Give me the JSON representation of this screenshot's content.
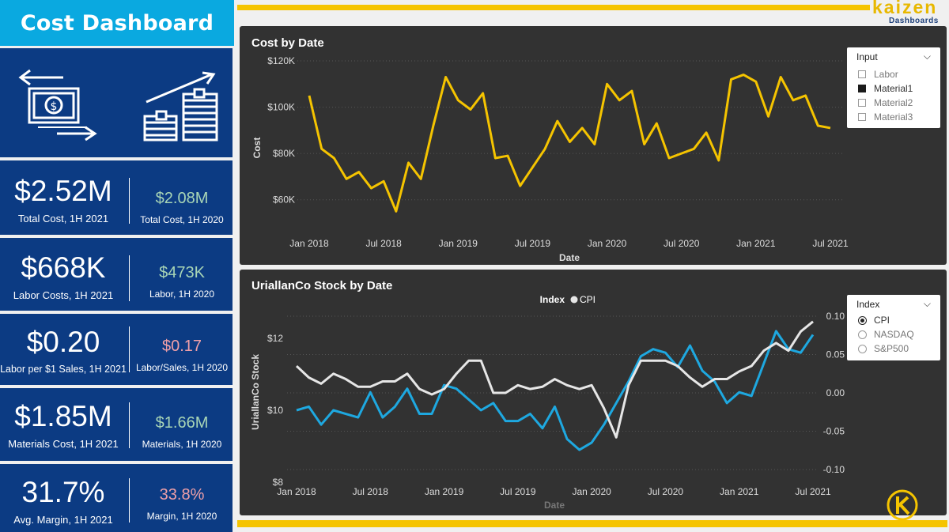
{
  "sidebar": {
    "title": "Cost Dashboard",
    "icons": [
      "money-exchange-icon",
      "money-growth-icon"
    ],
    "kpis": [
      {
        "value": "$2.52M",
        "label": "Total Cost, 1H 2021",
        "cmp_value": "$2.08M",
        "cmp_label": "Total Cost, 1H 2020",
        "cmp_color": "#a8d5b6"
      },
      {
        "value": "$668K",
        "label": "Labor Costs, 1H 2021",
        "cmp_value": "$473K",
        "cmp_label": "Labor, 1H 2020",
        "cmp_color": "#a8d5b6"
      },
      {
        "value": "$0.20",
        "label": "Labor per $1 Sales, 1H 2021",
        "cmp_value": "$0.17",
        "cmp_label": "Labor/Sales, 1H 2020",
        "cmp_color": "#f0a0a8"
      },
      {
        "value": "$1.85M",
        "label": "Materials Cost, 1H 2021",
        "cmp_value": "$1.66M",
        "cmp_label": "Materials, 1H 2020",
        "cmp_color": "#a8d5b6"
      },
      {
        "value": "31.7%",
        "label": "Avg. Margin, 1H 2021",
        "cmp_value": "33.8%",
        "cmp_label": "Margin, 1H 2020",
        "cmp_color": "#f0a0a8"
      }
    ]
  },
  "brand": {
    "name": "kaizen",
    "sub": "Dashboards",
    "badge_icon": "kaizen-k-logo-icon"
  },
  "colors": {
    "accent": "#f5c400",
    "sidebar": "#0c3b83",
    "title_bg": "#0aa9e0",
    "cost_line": "#f5c400",
    "stock_line": "#1ea8e0",
    "index_line": "#e6e6e6"
  },
  "cost_chart": {
    "title": "Cost by Date",
    "slicer": {
      "header": "Input",
      "options": [
        {
          "label": "Labor",
          "checked": false
        },
        {
          "label": "Material1",
          "checked": true
        },
        {
          "label": "Material2",
          "checked": false
        },
        {
          "label": "Material3",
          "checked": false
        }
      ]
    }
  },
  "stock_chart": {
    "title": "UriallanCo Stock by Date",
    "legend_title": "Index",
    "legend_item": "CPI",
    "slicer": {
      "header": "Index",
      "options": [
        {
          "label": "CPI",
          "selected": true
        },
        {
          "label": "NASDAQ",
          "selected": false
        },
        {
          "label": "S&P500",
          "selected": false
        }
      ]
    }
  },
  "chart_data": [
    {
      "type": "line",
      "title": "Cost by Date",
      "xlabel": "Date",
      "ylabel": "Cost",
      "x_ticks": [
        "Jan 2018",
        "Jul 2018",
        "Jan 2019",
        "Jul 2019",
        "Jan 2020",
        "Jul 2020",
        "Jan 2021",
        "Jul 2021"
      ],
      "y_ticks": [
        "$60K",
        "$80K",
        "$100K",
        "$120K"
      ],
      "ylim": [
        50000,
        120000
      ],
      "x": [
        "2018-01",
        "2018-02",
        "2018-03",
        "2018-04",
        "2018-05",
        "2018-06",
        "2018-07",
        "2018-08",
        "2018-09",
        "2018-10",
        "2018-11",
        "2018-12",
        "2019-01",
        "2019-02",
        "2019-03",
        "2019-04",
        "2019-05",
        "2019-06",
        "2019-07",
        "2019-08",
        "2019-09",
        "2019-10",
        "2019-11",
        "2019-12",
        "2020-01",
        "2020-02",
        "2020-03",
        "2020-04",
        "2020-05",
        "2020-06",
        "2020-07",
        "2020-08",
        "2020-09",
        "2020-10",
        "2020-11",
        "2020-12",
        "2021-01",
        "2021-02",
        "2021-03",
        "2021-04",
        "2021-05",
        "2021-06",
        "2021-07"
      ],
      "series": [
        {
          "name": "Material1",
          "values": [
            105000,
            82000,
            78000,
            69000,
            72000,
            65000,
            68000,
            55000,
            76000,
            69000,
            92000,
            113000,
            103000,
            99000,
            106000,
            78000,
            79000,
            66000,
            74000,
            82000,
            94000,
            85000,
            91000,
            84000,
            110000,
            103000,
            107000,
            84000,
            93000,
            78000,
            80000,
            82000,
            89000,
            77000,
            112000,
            114000,
            111000,
            96000,
            113000,
            103000,
            105000,
            92000,
            91000
          ]
        }
      ]
    },
    {
      "type": "line",
      "title": "UriallanCo Stock by Date",
      "xlabel": "Date",
      "ylabel": "UriallanCo Stock",
      "x_ticks": [
        "Jan 2018",
        "Jul 2018",
        "Jan 2019",
        "Jul 2019",
        "Jan 2020",
        "Jul 2020",
        "Jan 2021",
        "Jul 2021"
      ],
      "y_ticks": [
        "$8",
        "$10",
        "$12"
      ],
      "y2_ticks": [
        "-0.10",
        "-0.05",
        "0.00",
        "0.05",
        "0.10"
      ],
      "ylim": [
        8,
        12.8
      ],
      "y2lim": [
        -0.1,
        0.1
      ],
      "legend": {
        "title": "Index",
        "items": [
          "CPI"
        ]
      },
      "x": [
        "2018-01",
        "2018-02",
        "2018-03",
        "2018-04",
        "2018-05",
        "2018-06",
        "2018-07",
        "2018-08",
        "2018-09",
        "2018-10",
        "2018-11",
        "2018-12",
        "2019-01",
        "2019-02",
        "2019-03",
        "2019-04",
        "2019-05",
        "2019-06",
        "2019-07",
        "2019-08",
        "2019-09",
        "2019-10",
        "2019-11",
        "2019-12",
        "2020-01",
        "2020-02",
        "2020-03",
        "2020-04",
        "2020-05",
        "2020-06",
        "2020-07",
        "2020-08",
        "2020-09",
        "2020-10",
        "2020-11",
        "2020-12",
        "2021-01",
        "2021-02",
        "2021-03",
        "2021-04",
        "2021-05",
        "2021-06",
        "2021-07"
      ],
      "series": [
        {
          "name": "UriallanCo Stock",
          "axis": "left",
          "values": [
            10.0,
            10.1,
            9.6,
            10.0,
            9.9,
            9.8,
            10.5,
            9.8,
            10.1,
            10.6,
            9.9,
            9.9,
            10.7,
            10.6,
            10.3,
            10.0,
            10.2,
            9.7,
            9.7,
            9.9,
            9.5,
            10.1,
            9.2,
            8.9,
            9.1,
            9.6,
            10.2,
            10.8,
            11.5,
            11.7,
            11.6,
            11.2,
            11.8,
            11.1,
            10.8,
            10.2,
            10.5,
            10.4,
            11.3,
            12.2,
            11.7,
            11.6,
            12.1
          ]
        },
        {
          "name": "CPI",
          "axis": "right",
          "values": [
            0.035,
            0.02,
            0.012,
            0.025,
            0.018,
            0.008,
            0.008,
            0.015,
            0.015,
            0.025,
            0.005,
            -0.002,
            0.005,
            0.025,
            0.042,
            0.042,
            0.0,
            0.0,
            0.01,
            0.005,
            0.008,
            0.018,
            0.01,
            0.005,
            0.01,
            -0.02,
            -0.058,
            0.01,
            0.042,
            0.042,
            0.042,
            0.035,
            0.02,
            0.008,
            0.018,
            0.018,
            0.028,
            0.035,
            0.055,
            0.065,
            0.055,
            0.08,
            0.093
          ]
        }
      ]
    }
  ]
}
